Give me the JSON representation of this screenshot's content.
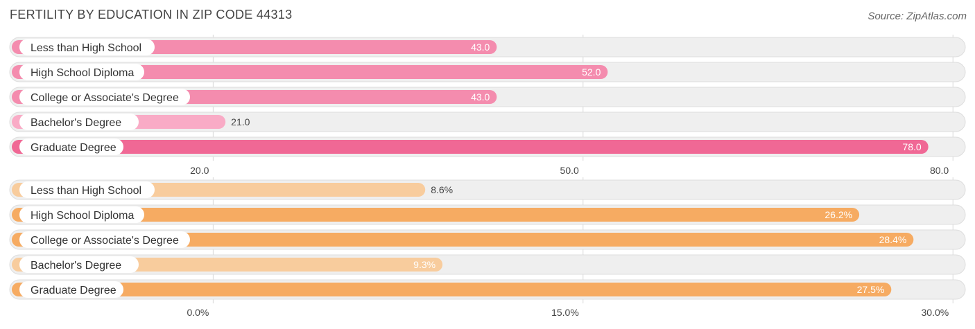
{
  "title": "FERTILITY BY EDUCATION IN ZIP CODE 44313",
  "source": "Source: ZipAtlas.com",
  "colors": {
    "pink": [
      "#f48cae",
      "#f48cae",
      "#f48cae",
      "#f9abc6",
      "#f06895"
    ],
    "orange": [
      "#f8cc9d",
      "#f6ab62",
      "#f6ab62",
      "#f8cc9d",
      "#f6ab62"
    ]
  },
  "chart_data": [
    {
      "type": "bar",
      "orientation": "horizontal",
      "categories": [
        "Less than High School",
        "High School Diploma",
        "College or Associate's Degree",
        "Bachelor's Degree",
        "Graduate Degree"
      ],
      "values": [
        43.0,
        52.0,
        43.0,
        21.0,
        78.0
      ],
      "value_labels": [
        "43.0",
        "52.0",
        "43.0",
        "21.0",
        "78.0"
      ],
      "ticks": [
        20,
        50,
        80
      ],
      "tick_labels": [
        "20.0",
        "50.0",
        "80.0"
      ],
      "xlim": [
        3.5,
        81.0
      ],
      "grid": true
    },
    {
      "type": "bar",
      "orientation": "horizontal",
      "categories": [
        "Less than High School",
        "High School Diploma",
        "College or Associate's Degree",
        "Bachelor's Degree",
        "Graduate Degree"
      ],
      "values": [
        8.6,
        26.2,
        28.4,
        9.3,
        27.5
      ],
      "value_labels": [
        "8.6%",
        "26.2%",
        "28.4%",
        "9.3%",
        "27.5%"
      ],
      "ticks": [
        0,
        15,
        30
      ],
      "tick_labels": [
        "0.0%",
        "15.0%",
        "30.0%"
      ],
      "xlim": [
        -8.25,
        30.5
      ],
      "grid": true
    }
  ]
}
